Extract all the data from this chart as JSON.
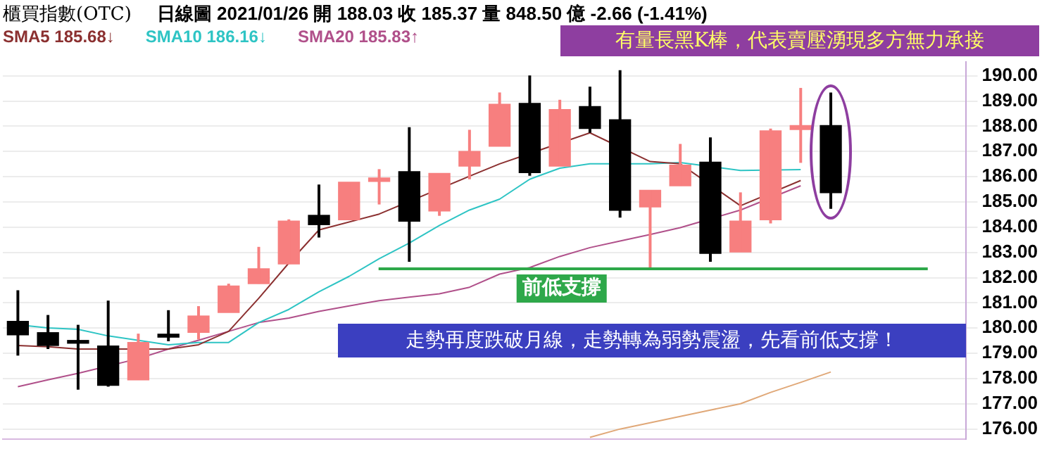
{
  "chart_data": {
    "type": "candlestick",
    "title": "櫃買指數(OTC)",
    "subtitle": "日線圖  2021/01/26  開 188.03  收 185.37  量 848.50 億  -2.66 (-1.41%)",
    "categories": [
      null,
      null,
      null,
      null,
      null,
      null,
      null,
      null,
      null,
      null,
      null,
      null,
      null,
      null,
      null,
      null,
      null,
      null,
      null,
      null,
      null,
      null,
      null,
      null,
      null,
      null,
      null,
      null,
      null,
      null,
      null,
      null
    ],
    "ohlc": [
      [
        180.27,
        181.5,
        178.91,
        179.73
      ],
      [
        179.82,
        180.52,
        179.17,
        179.31
      ],
      [
        179.45,
        180.13,
        177.56,
        179.4
      ],
      [
        179.29,
        181.09,
        177.68,
        177.73
      ],
      [
        177.95,
        179.78,
        177.95,
        179.43
      ],
      [
        179.76,
        180.71,
        179.48,
        179.64
      ],
      [
        179.83,
        180.87,
        179.55,
        180.48
      ],
      [
        180.62,
        181.76,
        180.62,
        181.67
      ],
      [
        181.76,
        183.22,
        181.76,
        182.35
      ],
      [
        182.54,
        184.31,
        182.54,
        184.24
      ],
      [
        184.47,
        185.69,
        183.59,
        184.1
      ],
      [
        184.29,
        185.78,
        184.29,
        185.78
      ],
      [
        185.81,
        186.3,
        184.9,
        185.95
      ],
      [
        186.2,
        187.96,
        182.63,
        184.24
      ],
      [
        184.64,
        186.13,
        184.45,
        186.13
      ],
      [
        186.42,
        187.86,
        185.9,
        187.0
      ],
      [
        187.21,
        189.34,
        187.21,
        188.87
      ],
      [
        188.91,
        190.01,
        186.04,
        186.16
      ],
      [
        186.42,
        189.05,
        186.42,
        188.66
      ],
      [
        188.78,
        189.57,
        187.74,
        187.91
      ],
      [
        188.26,
        190.22,
        184.38,
        184.67
      ],
      [
        184.8,
        185.46,
        182.35,
        185.46
      ],
      [
        185.64,
        187.3,
        185.64,
        186.46
      ],
      [
        186.58,
        187.56,
        182.63,
        182.96
      ],
      [
        183.02,
        185.38,
        183.02,
        184.24
      ],
      [
        184.29,
        187.91,
        184.15,
        187.82
      ],
      [
        187.87,
        189.52,
        186.55,
        188.03
      ],
      [
        188.03,
        189.34,
        184.73,
        185.37
      ],
      null,
      null,
      null,
      null
    ],
    "colors": [
      "#000000",
      "#000000",
      "#000000",
      "#000000",
      "#f77f7f",
      "#000000",
      "#f77f7f",
      "#f77f7f",
      "#f77f7f",
      "#f77f7f",
      "#000000",
      "#f77f7f",
      "#f77f7f",
      "#000000",
      "#f77f7f",
      "#f77f7f",
      "#f77f7f",
      "#000000",
      "#f77f7f",
      "#000000",
      "#000000",
      "#f77f7f",
      "#f77f7f",
      "#000000",
      "#f77f7f",
      "#f77f7f",
      "#f77f7f",
      "#000000",
      null,
      null,
      null,
      null
    ],
    "series": [
      {
        "name": "SMA5 185.68↓",
        "type": "line",
        "color": "#8b3030",
        "values": [
          179.31,
          179.26,
          179.17,
          null,
          null,
          179.17,
          179.34,
          179.87,
          181.18,
          182.58,
          183.89,
          null,
          184.52,
          null,
          null,
          186.02,
          186.51,
          null,
          null,
          187.74,
          null,
          186.6,
          186.51,
          null,
          184.85,
          null,
          185.85,
          null,
          null,
          null,
          null,
          null
        ]
      },
      {
        "name": "SMA10 186.16↓",
        "type": "line",
        "color": "#2ec4c4",
        "values": [
          180.13,
          180.01,
          179.95,
          179.69,
          null,
          179.34,
          179.43,
          179.43,
          180.22,
          180.74,
          181.44,
          182.05,
          182.75,
          183.37,
          184.07,
          184.68,
          185.11,
          185.9,
          186.34,
          186.51,
          null,
          186.51,
          186.56,
          null,
          186.25,
          null,
          186.28,
          null,
          null,
          null,
          null,
          null
        ]
      },
      {
        "name": "SMA20 185.83↑",
        "type": "line",
        "color": "#b0508a",
        "values": [
          177.68,
          177.95,
          178.21,
          null,
          178.79,
          179.17,
          179.52,
          179.87,
          180.22,
          180.4,
          180.66,
          180.88,
          181.09,
          181.23,
          181.36,
          181.62,
          182.14,
          182.4,
          182.84,
          183.19,
          183.45,
          183.71,
          183.98,
          null,
          184.68,
          null,
          185.64,
          null,
          null,
          null,
          null,
          null
        ]
      },
      {
        "type": "line",
        "color": "#e0a878",
        "values": [
          null,
          null,
          null,
          null,
          null,
          null,
          null,
          null,
          null,
          null,
          null,
          null,
          null,
          null,
          null,
          null,
          null,
          null,
          null,
          175.67,
          176.0,
          176.25,
          176.5,
          176.75,
          177.0,
          177.45,
          177.85,
          178.26,
          null,
          null,
          null,
          null
        ]
      }
    ],
    "ylim": [
      175.6,
      190.55
    ],
    "yticks": [
      {
        "value": 176,
        "label": "176.00"
      },
      {
        "value": 177,
        "label": "177.00"
      },
      {
        "value": 178,
        "label": "178.00"
      },
      {
        "value": 179,
        "label": "179.00"
      },
      {
        "value": 180,
        "label": "180.00"
      },
      {
        "value": 181,
        "label": "181.00"
      },
      {
        "value": 182,
        "label": "182.00"
      },
      {
        "value": 183,
        "label": "183.00"
      },
      {
        "value": 184,
        "label": "184.00"
      },
      {
        "value": 185,
        "label": "185.00"
      },
      {
        "value": 186,
        "label": "186.00"
      },
      {
        "value": 187,
        "label": "187.00"
      },
      {
        "value": 188,
        "label": "188.00"
      },
      {
        "value": 189,
        "label": "189.00"
      },
      {
        "value": 190,
        "label": "190.00"
      }
    ],
    "grid": "y",
    "legend": "top left",
    "marker": "none",
    "tick_labels": "y",
    "ref_lines": [
      {
        "axis": "y",
        "value": 182.35,
        "label": "前低支撐",
        "color": "#2ea84a"
      }
    ],
    "annotations": [
      "有量長黑K棒，代表賣壓湧現多方無力承接",
      "走勢再度跌破月線，走勢轉為弱勢震盪，先看前低支撐！"
    ]
  }
}
